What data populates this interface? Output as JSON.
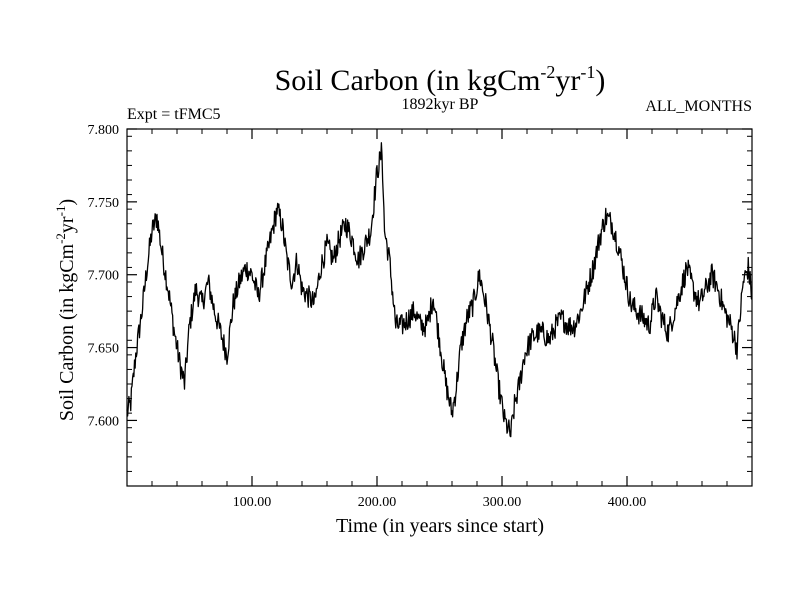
{
  "chart_data": {
    "type": "line",
    "title": {
      "main": "Soil Carbon (in kgCm",
      "sup1": "-2",
      "mid": "yr",
      "sup2": "-1",
      "end": ")"
    },
    "expt_label": "Expt = tFMC5",
    "period_label": "1892kyr BP",
    "months_label": "ALL_MONTHS",
    "xlabel": "Time (in years since start)",
    "ylabel": {
      "main": "Soil Carbon (in kgCm",
      "sup1": "-2",
      "mid": "yr",
      "sup2": "-1",
      "end": ")"
    },
    "xlim": [
      0,
      500
    ],
    "ylim": [
      7.555,
      7.8
    ],
    "xticks": [
      100,
      200,
      300,
      400
    ],
    "xtick_labels": [
      "100.00",
      "200.00",
      "300.00",
      "400.00"
    ],
    "yticks": [
      7.6,
      7.65,
      7.7,
      7.75,
      7.8
    ],
    "ytick_labels": [
      "7.600",
      "7.650",
      "7.700",
      "7.750",
      "7.800"
    ],
    "series": [
      {
        "name": "Soil Carbon",
        "color": "#000000",
        "noise": 0.008,
        "x": [
          0,
          3,
          7,
          12,
          16,
          20,
          24,
          28,
          33,
          38,
          42,
          46,
          50,
          55,
          60,
          65,
          70,
          75,
          80,
          85,
          90,
          95,
          100,
          105,
          110,
          115,
          120,
          124,
          128,
          132,
          136,
          140,
          145,
          150,
          155,
          160,
          165,
          170,
          175,
          180,
          185,
          190,
          195,
          200,
          204,
          206,
          210,
          215,
          220,
          225,
          230,
          235,
          240,
          245,
          250,
          255,
          260,
          263,
          267,
          272,
          277,
          282,
          287,
          292,
          297,
          302,
          307,
          310,
          314,
          318,
          323,
          328,
          333,
          338,
          343,
          348,
          353,
          358,
          363,
          368,
          373,
          378,
          383,
          388,
          393,
          398,
          403,
          408,
          413,
          418,
          423,
          428,
          433,
          438,
          443,
          448,
          453,
          458,
          463,
          468,
          473,
          478,
          483,
          488,
          493,
          497,
          500
        ],
        "y": [
          7.605,
          7.612,
          7.645,
          7.675,
          7.705,
          7.73,
          7.74,
          7.715,
          7.69,
          7.66,
          7.64,
          7.625,
          7.665,
          7.69,
          7.68,
          7.695,
          7.675,
          7.66,
          7.645,
          7.68,
          7.695,
          7.705,
          7.7,
          7.685,
          7.705,
          7.725,
          7.745,
          7.735,
          7.71,
          7.695,
          7.71,
          7.69,
          7.685,
          7.68,
          7.705,
          7.72,
          7.71,
          7.725,
          7.735,
          7.725,
          7.71,
          7.72,
          7.73,
          7.77,
          7.785,
          7.73,
          7.71,
          7.665,
          7.665,
          7.67,
          7.675,
          7.665,
          7.665,
          7.685,
          7.655,
          7.625,
          7.605,
          7.62,
          7.65,
          7.67,
          7.68,
          7.7,
          7.68,
          7.655,
          7.625,
          7.6,
          7.59,
          7.61,
          7.625,
          7.645,
          7.655,
          7.66,
          7.66,
          7.655,
          7.665,
          7.67,
          7.665,
          7.665,
          7.675,
          7.69,
          7.705,
          7.725,
          7.74,
          7.735,
          7.72,
          7.7,
          7.68,
          7.675,
          7.67,
          7.665,
          7.685,
          7.67,
          7.66,
          7.675,
          7.69,
          7.705,
          7.69,
          7.68,
          7.69,
          7.7,
          7.69,
          7.675,
          7.665,
          7.65,
          7.695,
          7.705,
          7.685
        ]
      }
    ]
  }
}
